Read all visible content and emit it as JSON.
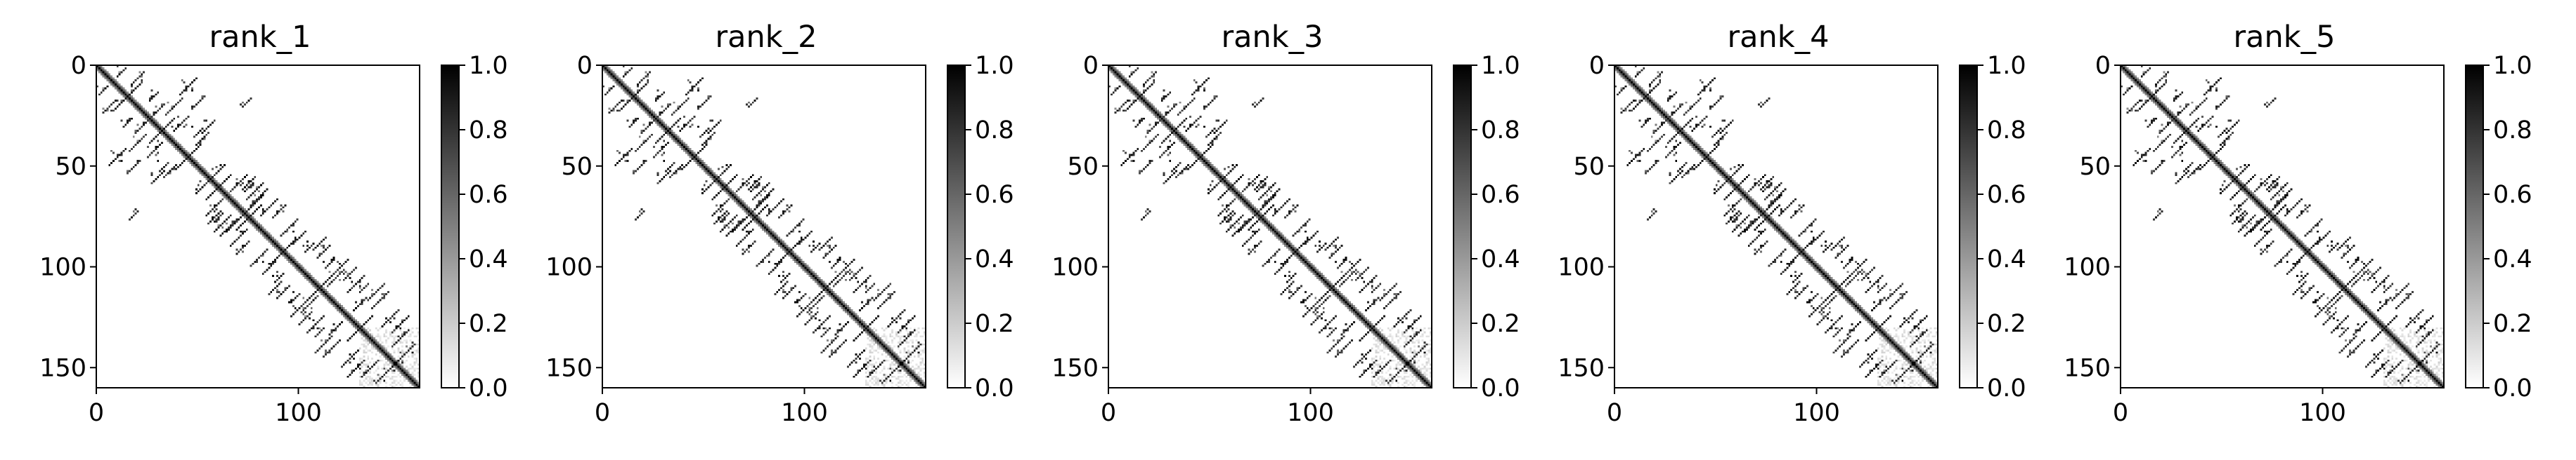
{
  "chart_data": [
    {
      "type": "heatmap",
      "title": "rank_1",
      "colormap": "gray_r",
      "xlim": [
        0,
        160
      ],
      "ylim": [
        160,
        0
      ],
      "xticks": [
        0,
        100
      ],
      "yticks": [
        0,
        50,
        100,
        150
      ],
      "colorbar": {
        "range": [
          0.0,
          1.0
        ],
        "ticks": [
          0.0,
          0.2,
          0.4,
          0.6,
          0.8,
          1.0
        ],
        "tick_labels": [
          "0.0",
          "0.2",
          "0.4",
          "0.6",
          "0.8",
          "1.0"
        ]
      }
    },
    {
      "type": "heatmap",
      "title": "rank_2",
      "colormap": "gray_r",
      "xlim": [
        0,
        160
      ],
      "ylim": [
        160,
        0
      ],
      "xticks": [
        0,
        100
      ],
      "yticks": [
        0,
        50,
        100,
        150
      ],
      "colorbar": {
        "range": [
          0.0,
          1.0
        ],
        "ticks": [
          0.0,
          0.2,
          0.4,
          0.6,
          0.8,
          1.0
        ],
        "tick_labels": [
          "0.0",
          "0.2",
          "0.4",
          "0.6",
          "0.8",
          "1.0"
        ]
      }
    },
    {
      "type": "heatmap",
      "title": "rank_3",
      "colormap": "gray_r",
      "xlim": [
        0,
        160
      ],
      "ylim": [
        160,
        0
      ],
      "xticks": [
        0,
        100
      ],
      "yticks": [
        0,
        50,
        100,
        150
      ],
      "colorbar": {
        "range": [
          0.0,
          1.0
        ],
        "ticks": [
          0.0,
          0.2,
          0.4,
          0.6,
          0.8,
          1.0
        ],
        "tick_labels": [
          "0.0",
          "0.2",
          "0.4",
          "0.6",
          "0.8",
          "1.0"
        ]
      }
    },
    {
      "type": "heatmap",
      "title": "rank_4",
      "colormap": "gray_r",
      "xlim": [
        0,
        160
      ],
      "ylim": [
        160,
        0
      ],
      "xticks": [
        0,
        100
      ],
      "yticks": [
        0,
        50,
        100,
        150
      ],
      "colorbar": {
        "range": [
          0.0,
          1.0
        ],
        "ticks": [
          0.0,
          0.2,
          0.4,
          0.6,
          0.8,
          1.0
        ],
        "tick_labels": [
          "0.0",
          "0.2",
          "0.4",
          "0.6",
          "0.8",
          "1.0"
        ]
      }
    },
    {
      "type": "heatmap",
      "title": "rank_5",
      "colormap": "gray_r",
      "xlim": [
        0,
        160
      ],
      "ylim": [
        160,
        0
      ],
      "xticks": [
        0,
        100
      ],
      "yticks": [
        0,
        50,
        100,
        150
      ],
      "colorbar": {
        "range": [
          0.0,
          1.0
        ],
        "ticks": [
          0.0,
          0.2,
          0.4,
          0.6,
          0.8,
          1.0
        ],
        "tick_labels": [
          "0.0",
          "0.2",
          "0.4",
          "0.6",
          "0.8",
          "1.0"
        ]
      }
    }
  ],
  "structure": {
    "diagonal_value": 1.0,
    "contact_blobs": [
      [
        3,
        12
      ],
      [
        6,
        20
      ],
      [
        12,
        18
      ],
      [
        15,
        28
      ],
      [
        10,
        45
      ],
      [
        18,
        50
      ],
      [
        20,
        38
      ],
      [
        22,
        30
      ],
      [
        28,
        42
      ],
      [
        30,
        55
      ],
      [
        33,
        50
      ],
      [
        36,
        52
      ],
      [
        40,
        30
      ],
      [
        45,
        10
      ],
      [
        52,
        60
      ],
      [
        58,
        70
      ],
      [
        60,
        75
      ],
      [
        62,
        78
      ],
      [
        65,
        80
      ],
      [
        70,
        85
      ],
      [
        72,
        90
      ],
      [
        74,
        18
      ],
      [
        75,
        58
      ],
      [
        78,
        68
      ],
      [
        80,
        95
      ],
      [
        85,
        100
      ],
      [
        88,
        110
      ],
      [
        90,
        105
      ],
      [
        92,
        112
      ],
      [
        98,
        115
      ],
      [
        100,
        120
      ],
      [
        103,
        125
      ],
      [
        105,
        118
      ],
      [
        108,
        128
      ],
      [
        110,
        132
      ],
      [
        112,
        138
      ],
      [
        116,
        140
      ],
      [
        118,
        130
      ],
      [
        120,
        100
      ],
      [
        125,
        145
      ],
      [
        128,
        150
      ],
      [
        135,
        150
      ],
      [
        140,
        155
      ],
      [
        145,
        150
      ]
    ],
    "faint_region": {
      "start": 130,
      "end": 160,
      "value": 0.12
    }
  }
}
